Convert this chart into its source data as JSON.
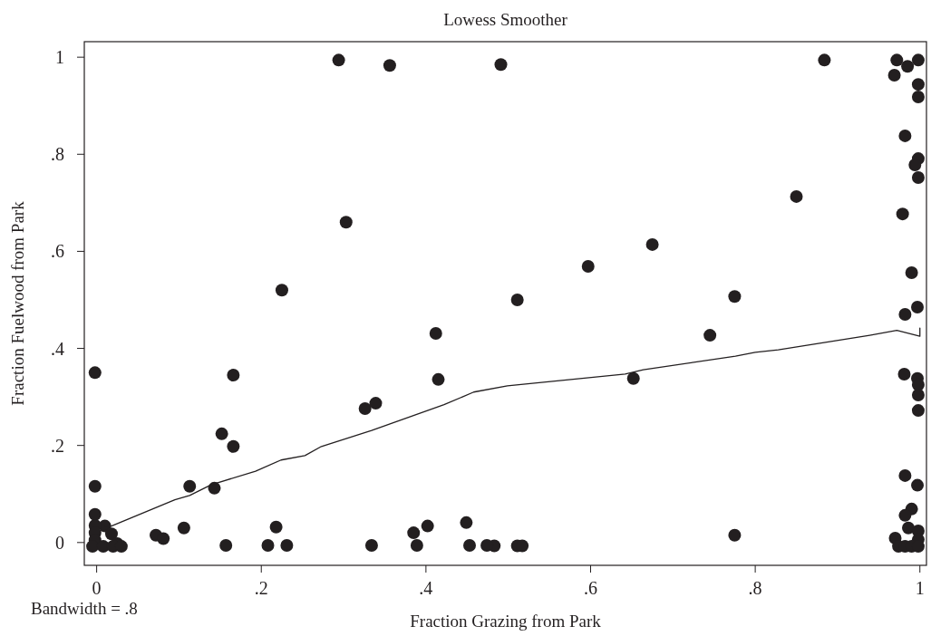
{
  "chart_data": {
    "type": "scatter",
    "title": "Lowess Smoother",
    "xlabel": "Fraction Grazing from Park",
    "ylabel": "Fraction Fuelwood from Park",
    "annotations": [
      "Bandwidth = .8"
    ],
    "xlim": [
      -0.015,
      1.008
    ],
    "ylim": [
      -0.047,
      1.032
    ],
    "xticks": [
      0,
      {
        "value": 0.2,
        "label": ".2"
      },
      {
        "value": 0.4,
        "label": ".4"
      },
      {
        "value": 0.6,
        "label": ".6"
      },
      {
        "value": 0.8,
        "label": ".8"
      },
      1
    ],
    "yticks": [
      0,
      {
        "value": 0.2,
        "label": ".2"
      },
      {
        "value": 0.4,
        "label": ".4"
      },
      {
        "value": 0.6,
        "label": ".6"
      },
      {
        "value": 0.8,
        "label": ".8"
      },
      1
    ],
    "grid": false,
    "series": [
      {
        "marker": "circle",
        "color": "#231f20",
        "x": [
          0.294,
          0.356,
          0.491,
          0.303,
          0.225,
          0.412,
          0.415,
          -0.002,
          0.166,
          0.326,
          0.339,
          0.152,
          0.166,
          0.884,
          0.85,
          0.675,
          0.597,
          0.511,
          0.775,
          0.745,
          0.652,
          0.775,
          0.483,
          0.511,
          0.517,
          0.208,
          0.218,
          0.231,
          0.334,
          0.385,
          0.389,
          0.402,
          0.449,
          0.453,
          0.474,
          -0.002,
          0.113,
          0.143,
          -0.002,
          0.01,
          -0.002,
          -0.002,
          -0.002,
          0.018,
          0.025,
          0.072,
          0.081,
          0.106,
          0.157,
          -0.005,
          0.008,
          0.02,
          0.03,
          0.972,
          0.985,
          0.998,
          0.969,
          0.998,
          0.998,
          0.982,
          0.998,
          0.994,
          0.998,
          0.979,
          0.99,
          0.997,
          0.982,
          0.981,
          0.997,
          0.998,
          0.998,
          0.998,
          0.982,
          0.997,
          0.99,
          0.982,
          0.986,
          0.998,
          0.97,
          0.998,
          0.974,
          0.982,
          0.99,
          0.998
        ],
        "values": [
          0.994,
          0.983,
          0.985,
          0.66,
          0.52,
          0.431,
          0.336,
          0.35,
          0.345,
          0.276,
          0.287,
          0.224,
          0.198,
          0.994,
          0.713,
          0.614,
          0.569,
          0.5,
          0.507,
          0.427,
          0.338,
          0.015,
          -0.007,
          -0.007,
          -0.007,
          -0.006,
          0.032,
          -0.006,
          -0.006,
          0.02,
          -0.006,
          0.034,
          0.041,
          -0.006,
          -0.006,
          0.116,
          0.116,
          0.112,
          0.058,
          0.034,
          0.035,
          0.02,
          0.005,
          0.018,
          -0.002,
          0.015,
          0.008,
          0.03,
          -0.006,
          -0.008,
          -0.008,
          -0.008,
          -0.008,
          0.994,
          0.981,
          0.994,
          0.963,
          0.944,
          0.918,
          0.838,
          0.791,
          0.778,
          0.752,
          0.677,
          0.556,
          0.485,
          0.47,
          0.347,
          0.338,
          0.325,
          0.304,
          0.272,
          0.138,
          0.118,
          0.069,
          0.056,
          0.03,
          0.024,
          0.009,
          0.006,
          -0.008,
          -0.008,
          -0.008,
          -0.008
        ]
      },
      {
        "type": "line",
        "color": "#231f20",
        "x": [
          0.01,
          0.018,
          0.095,
          0.113,
          0.139,
          0.193,
          0.224,
          0.253,
          0.273,
          0.334,
          0.422,
          0.458,
          0.499,
          0.642,
          0.664,
          0.776,
          0.8,
          0.828,
          0.939,
          0.972,
          1.0,
          1.0
        ],
        "values": [
          0.034,
          0.034,
          0.088,
          0.097,
          0.119,
          0.147,
          0.17,
          0.179,
          0.198,
          0.231,
          0.284,
          0.31,
          0.323,
          0.347,
          0.356,
          0.384,
          0.392,
          0.397,
          0.427,
          0.437,
          0.425,
          0.442
        ]
      }
    ]
  }
}
